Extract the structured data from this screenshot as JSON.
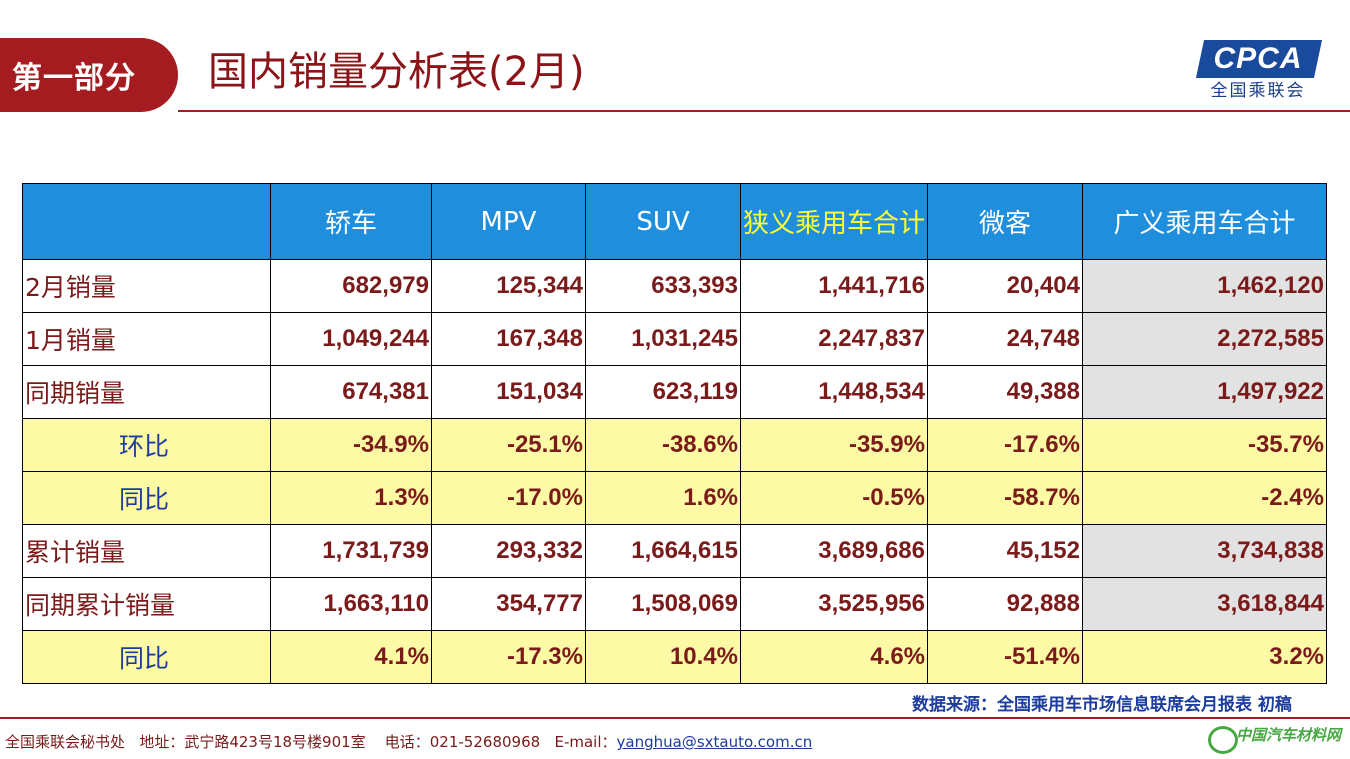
{
  "header": {
    "section_label": "第一部分",
    "title": "国内销量分析表(2月)",
    "logo_text": "CPCA",
    "logo_subtitle": "全国乘联会"
  },
  "table": {
    "columns": [
      "",
      "轿车",
      "MPV",
      "SUV",
      "狭义乘用车合计",
      "微客",
      "广义乘用车合计"
    ],
    "rows": [
      {
        "label": "2月销量",
        "cells": [
          "682,979",
          "125,344",
          "633,393",
          "1,441,716",
          "20,404",
          "1,462,120"
        ]
      },
      {
        "label": "1月销量",
        "cells": [
          "1,049,244",
          "167,348",
          "1,031,245",
          "2,247,837",
          "24,748",
          "2,272,585"
        ]
      },
      {
        "label": "同期销量",
        "cells": [
          "674,381",
          "151,034",
          "623,119",
          "1,448,534",
          "49,388",
          "1,497,922"
        ]
      },
      {
        "label": "环比",
        "cells": [
          "-34.9%",
          "-25.1%",
          "-38.6%",
          "-35.9%",
          "-17.6%",
          "-35.7%"
        ]
      },
      {
        "label": "同比",
        "cells": [
          "1.3%",
          "-17.0%",
          "1.6%",
          "-0.5%",
          "-58.7%",
          "-2.4%"
        ]
      },
      {
        "label": "累计销量",
        "cells": [
          "1,731,739",
          "293,332",
          "1,664,615",
          "3,689,686",
          "45,152",
          "3,734,838"
        ]
      },
      {
        "label": "同期累计销量",
        "cells": [
          "1,663,110",
          "354,777",
          "1,508,069",
          "3,525,956",
          "92,888",
          "3,618,844"
        ]
      },
      {
        "label": "同比",
        "cells": [
          "4.1%",
          "-17.3%",
          "10.4%",
          "4.6%",
          "-51.4%",
          "3.2%"
        ]
      }
    ]
  },
  "source_note": "数据来源：全国乘用车市场信息联席会月报表 初稿",
  "footer": {
    "org": "全国乘联会秘书处",
    "address": "地址：武宁路423号18号楼901室",
    "phone": "电话：021-52680968",
    "email_label": "E-mail：",
    "email": "yanghua@sxtauto.com.cn",
    "watermark": "中国汽车材料网"
  },
  "colors": {
    "brand_red": "#a51c20",
    "header_blue": "#1f8fdd",
    "highlight_yellow": "#fdfaa6",
    "total_gray": "#e2e2e2"
  }
}
